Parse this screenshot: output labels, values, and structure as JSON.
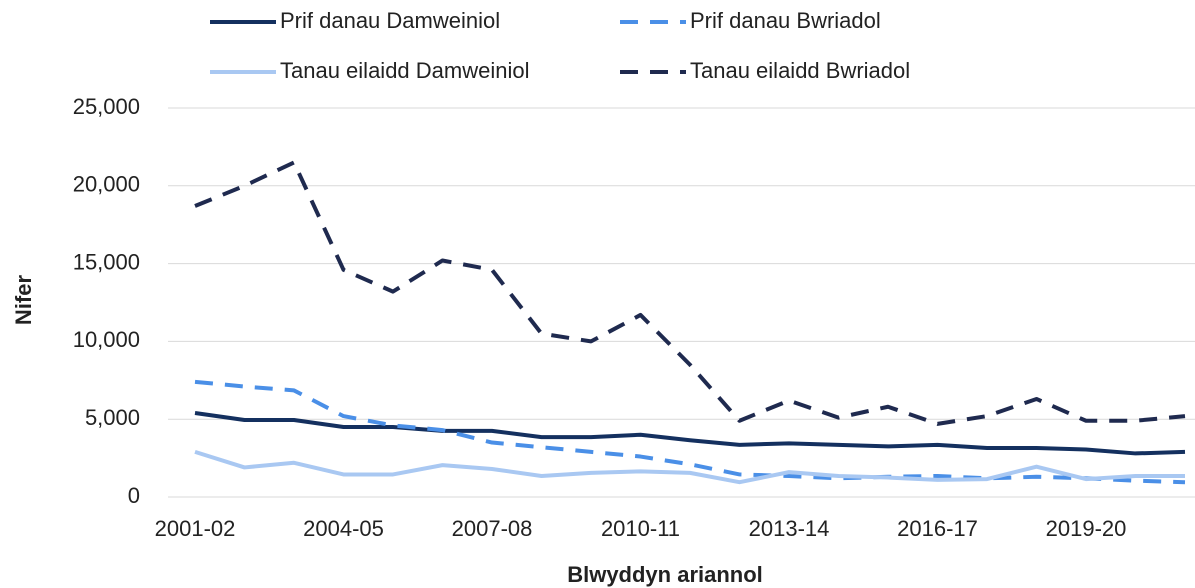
{
  "chart_data": {
    "type": "line",
    "xlabel": "Blwyddyn ariannol",
    "ylabel": "Nifer",
    "categories": [
      "2001-02",
      null,
      null,
      "2004-05",
      null,
      null,
      "2007-08",
      null,
      null,
      "2010-11",
      null,
      null,
      "2013-14",
      null,
      null,
      "2016-17",
      null,
      null,
      "2019-20",
      null,
      null
    ],
    "series": [
      {
        "name": "Prif danau Damweiniol",
        "color": "#14305f",
        "dashed": false,
        "values": [
          5400,
          4950,
          4950,
          4500,
          4500,
          4250,
          4250,
          3850,
          3850,
          4000,
          3650,
          3350,
          3450,
          3350,
          3250,
          3350,
          3150,
          3150,
          3050,
          2800,
          2900
        ]
      },
      {
        "name": "Prif danau Bwriadol",
        "color": "#4a8fe7",
        "dashed": true,
        "values": [
          7400,
          7100,
          6850,
          5200,
          4600,
          4300,
          3500,
          3200,
          2900,
          2600,
          2100,
          1450,
          1350,
          1200,
          1300,
          1350,
          1200,
          1300,
          1200,
          1050,
          950
        ]
      },
      {
        "name": "Tanau eilaidd Damweiniol",
        "color": "#a9c8f2",
        "dashed": false,
        "values": [
          2900,
          1900,
          2200,
          1450,
          1450,
          2050,
          1800,
          1350,
          1550,
          1650,
          1550,
          950,
          1600,
          1350,
          1250,
          1100,
          1150,
          1950,
          1150,
          1350,
          1350
        ]
      },
      {
        "name": "Tanau eilaidd Bwriadol",
        "color": "#1f2a4f",
        "dashed": true,
        "values": [
          18700,
          20000,
          21500,
          14600,
          13200,
          15200,
          14600,
          10500,
          10000,
          11700,
          8500,
          4900,
          6200,
          5100,
          5800,
          4700,
          5200,
          6300,
          4900,
          4900,
          5200
        ]
      }
    ],
    "ylim": [
      0,
      25000
    ],
    "yticks": [
      0,
      {
        "value": 5000,
        "label": "5,000"
      },
      {
        "value": 10000,
        "label": "10,000"
      },
      {
        "value": 15000,
        "label": "15,000"
      },
      {
        "value": 20000,
        "label": "20,000"
      },
      {
        "value": 25000,
        "label": "25,000"
      }
    ],
    "grid": true,
    "legend": "top"
  }
}
